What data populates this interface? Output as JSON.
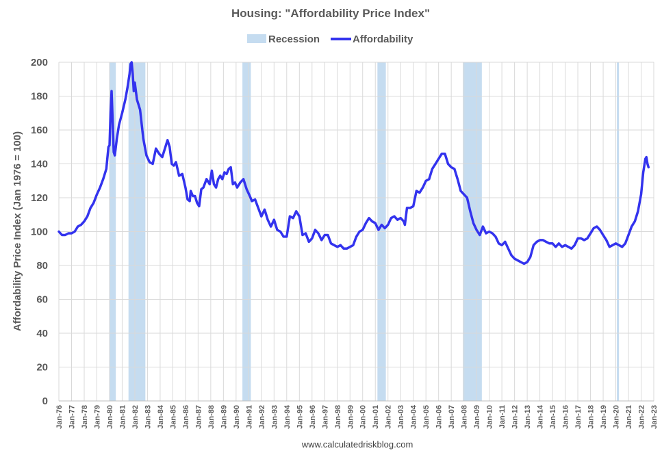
{
  "chart_data": {
    "type": "line",
    "title": "Housing: \"Affordability Price Index\"",
    "ylabel": "Affordability Price Index (Jan 1976 = 100)",
    "xlabel": "",
    "ylim": [
      0,
      200
    ],
    "xlim": [
      "1976-01",
      "2023-01"
    ],
    "yticks": [
      0,
      20,
      40,
      60,
      80,
      100,
      120,
      140,
      160,
      180,
      200
    ],
    "xtick_labels": [
      "Jan-76",
      "Jan-77",
      "Jan-78",
      "Jan-79",
      "Jan-80",
      "Jan-81",
      "Jan-82",
      "Jan-83",
      "Jan-84",
      "Jan-85",
      "Jan-86",
      "Jan-87",
      "Jan-88",
      "Jan-89",
      "Jan-90",
      "Jan-91",
      "Jan-92",
      "Jan-93",
      "Jan-94",
      "Jan-95",
      "Jan-96",
      "Jan-97",
      "Jan-98",
      "Jan-99",
      "Jan-00",
      "Jan-01",
      "Jan-02",
      "Jan-03",
      "Jan-04",
      "Jan-05",
      "Jan-06",
      "Jan-07",
      "Jan-08",
      "Jan-09",
      "Jan-10",
      "Jan-11",
      "Jan-12",
      "Jan-13",
      "Jan-14",
      "Jan-15",
      "Jan-16",
      "Jan-17",
      "Jan-18",
      "Jan-19",
      "Jan-20",
      "Jan-21",
      "Jan-22",
      "Jan-23"
    ],
    "grid": true,
    "legend_position": "top-center",
    "legend": [
      {
        "name": "Recession",
        "type": "band",
        "color": "#c5dcf0"
      },
      {
        "name": "Affordability",
        "type": "line",
        "color": "#3333ee"
      }
    ],
    "recessions": [
      [
        "1980-01",
        "1980-07"
      ],
      [
        "1981-07",
        "1982-11"
      ],
      [
        "1990-07",
        "1991-03"
      ],
      [
        "2001-03",
        "2001-11"
      ],
      [
        "2007-12",
        "2009-06"
      ],
      [
        "2020-02",
        "2020-04"
      ]
    ],
    "series": [
      {
        "name": "Affordability",
        "color": "#3333ee",
        "points": [
          [
            "1976-01",
            100
          ],
          [
            "1976-04",
            98
          ],
          [
            "1976-07",
            98
          ],
          [
            "1976-10",
            99
          ],
          [
            "1977-01",
            99
          ],
          [
            "1977-04",
            100
          ],
          [
            "1977-07",
            103
          ],
          [
            "1977-10",
            104
          ],
          [
            "1978-01",
            106
          ],
          [
            "1978-04",
            109
          ],
          [
            "1978-07",
            114
          ],
          [
            "1978-10",
            117
          ],
          [
            "1979-01",
            122
          ],
          [
            "1979-04",
            126
          ],
          [
            "1979-07",
            131
          ],
          [
            "1979-10",
            137
          ],
          [
            "1979-12",
            150
          ],
          [
            "1980-01",
            151
          ],
          [
            "1980-02",
            170
          ],
          [
            "1980-03",
            183
          ],
          [
            "1980-04",
            165
          ],
          [
            "1980-05",
            147
          ],
          [
            "1980-06",
            145
          ],
          [
            "1980-08",
            155
          ],
          [
            "1980-10",
            163
          ],
          [
            "1981-01",
            170
          ],
          [
            "1981-04",
            178
          ],
          [
            "1981-06",
            185
          ],
          [
            "1981-08",
            193
          ],
          [
            "1981-09",
            199
          ],
          [
            "1981-10",
            200
          ],
          [
            "1981-11",
            193
          ],
          [
            "1981-12",
            183
          ],
          [
            "1982-01",
            188
          ],
          [
            "1982-03",
            178
          ],
          [
            "1982-06",
            172
          ],
          [
            "1982-09",
            155
          ],
          [
            "1982-12",
            145
          ],
          [
            "1983-03",
            141
          ],
          [
            "1983-06",
            140
          ],
          [
            "1983-09",
            149
          ],
          [
            "1983-12",
            146
          ],
          [
            "1984-03",
            144
          ],
          [
            "1984-06",
            150
          ],
          [
            "1984-08",
            154
          ],
          [
            "1984-10",
            150
          ],
          [
            "1984-12",
            140
          ],
          [
            "1985-02",
            139
          ],
          [
            "1985-04",
            141
          ],
          [
            "1985-07",
            133
          ],
          [
            "1985-10",
            134
          ],
          [
            "1986-01",
            126
          ],
          [
            "1986-03",
            119
          ],
          [
            "1986-05",
            118
          ],
          [
            "1986-06",
            124
          ],
          [
            "1986-08",
            121
          ],
          [
            "1986-10",
            121
          ],
          [
            "1986-12",
            117
          ],
          [
            "1987-02",
            115
          ],
          [
            "1987-04",
            125
          ],
          [
            "1987-06",
            126
          ],
          [
            "1987-09",
            131
          ],
          [
            "1987-12",
            128
          ],
          [
            "1988-02",
            136
          ],
          [
            "1988-04",
            128
          ],
          [
            "1988-06",
            126
          ],
          [
            "1988-08",
            131
          ],
          [
            "1988-10",
            133
          ],
          [
            "1988-12",
            131
          ],
          [
            "1989-02",
            135
          ],
          [
            "1989-04",
            134
          ],
          [
            "1989-06",
            137
          ],
          [
            "1989-08",
            138
          ],
          [
            "1989-10",
            128
          ],
          [
            "1989-12",
            129
          ],
          [
            "1990-02",
            126
          ],
          [
            "1990-05",
            129
          ],
          [
            "1990-08",
            131
          ],
          [
            "1990-11",
            125
          ],
          [
            "1991-02",
            121
          ],
          [
            "1991-04",
            118
          ],
          [
            "1991-07",
            119
          ],
          [
            "1991-10",
            114
          ],
          [
            "1992-01",
            109
          ],
          [
            "1992-04",
            113
          ],
          [
            "1992-07",
            107
          ],
          [
            "1992-10",
            103
          ],
          [
            "1993-01",
            107
          ],
          [
            "1993-04",
            101
          ],
          [
            "1993-07",
            100
          ],
          [
            "1993-10",
            97
          ],
          [
            "1994-01",
            97
          ],
          [
            "1994-04",
            109
          ],
          [
            "1994-07",
            108
          ],
          [
            "1994-10",
            112
          ],
          [
            "1995-01",
            109
          ],
          [
            "1995-04",
            98
          ],
          [
            "1995-07",
            99
          ],
          [
            "1995-10",
            94
          ],
          [
            "1996-01",
            96
          ],
          [
            "1996-04",
            101
          ],
          [
            "1996-07",
            99
          ],
          [
            "1996-10",
            95
          ],
          [
            "1997-01",
            98
          ],
          [
            "1997-04",
            98
          ],
          [
            "1997-07",
            93
          ],
          [
            "1997-10",
            92
          ],
          [
            "1998-01",
            91
          ],
          [
            "1998-04",
            92
          ],
          [
            "1998-07",
            90
          ],
          [
            "1998-10",
            90
          ],
          [
            "1999-01",
            91
          ],
          [
            "1999-04",
            92
          ],
          [
            "1999-07",
            97
          ],
          [
            "1999-10",
            100
          ],
          [
            "2000-01",
            101
          ],
          [
            "2000-04",
            105
          ],
          [
            "2000-07",
            108
          ],
          [
            "2000-10",
            106
          ],
          [
            "2001-01",
            105
          ],
          [
            "2001-04",
            101
          ],
          [
            "2001-07",
            104
          ],
          [
            "2001-10",
            102
          ],
          [
            "2002-01",
            104
          ],
          [
            "2002-04",
            108
          ],
          [
            "2002-07",
            109
          ],
          [
            "2002-10",
            107
          ],
          [
            "2003-01",
            108
          ],
          [
            "2003-04",
            106
          ],
          [
            "2003-05",
            104
          ],
          [
            "2003-07",
            114
          ],
          [
            "2003-10",
            114
          ],
          [
            "2004-01",
            115
          ],
          [
            "2004-04",
            124
          ],
          [
            "2004-07",
            123
          ],
          [
            "2004-10",
            126
          ],
          [
            "2005-01",
            130
          ],
          [
            "2005-04",
            131
          ],
          [
            "2005-07",
            137
          ],
          [
            "2005-10",
            140
          ],
          [
            "2006-01",
            143
          ],
          [
            "2006-04",
            146
          ],
          [
            "2006-07",
            146
          ],
          [
            "2006-10",
            140
          ],
          [
            "2007-01",
            138
          ],
          [
            "2007-04",
            137
          ],
          [
            "2007-07",
            131
          ],
          [
            "2007-10",
            124
          ],
          [
            "2008-01",
            122
          ],
          [
            "2008-04",
            120
          ],
          [
            "2008-07",
            112
          ],
          [
            "2008-10",
            105
          ],
          [
            "2009-01",
            101
          ],
          [
            "2009-04",
            98
          ],
          [
            "2009-07",
            103
          ],
          [
            "2009-10",
            99
          ],
          [
            "2010-01",
            100
          ],
          [
            "2010-04",
            99
          ],
          [
            "2010-07",
            97
          ],
          [
            "2010-10",
            93
          ],
          [
            "2011-01",
            92
          ],
          [
            "2011-04",
            94
          ],
          [
            "2011-07",
            90
          ],
          [
            "2011-10",
            86
          ],
          [
            "2012-01",
            84
          ],
          [
            "2012-04",
            83
          ],
          [
            "2012-07",
            82
          ],
          [
            "2012-10",
            81
          ],
          [
            "2013-01",
            82
          ],
          [
            "2013-04",
            85
          ],
          [
            "2013-07",
            92
          ],
          [
            "2013-10",
            94
          ],
          [
            "2014-01",
            95
          ],
          [
            "2014-04",
            95
          ],
          [
            "2014-07",
            94
          ],
          [
            "2014-10",
            93
          ],
          [
            "2015-01",
            93
          ],
          [
            "2015-04",
            91
          ],
          [
            "2015-07",
            93
          ],
          [
            "2015-10",
            91
          ],
          [
            "2016-01",
            92
          ],
          [
            "2016-04",
            91
          ],
          [
            "2016-07",
            90
          ],
          [
            "2016-10",
            92
          ],
          [
            "2017-01",
            96
          ],
          [
            "2017-04",
            96
          ],
          [
            "2017-07",
            95
          ],
          [
            "2017-10",
            96
          ],
          [
            "2018-01",
            99
          ],
          [
            "2018-04",
            102
          ],
          [
            "2018-07",
            103
          ],
          [
            "2018-10",
            101
          ],
          [
            "2019-01",
            98
          ],
          [
            "2019-04",
            95
          ],
          [
            "2019-07",
            91
          ],
          [
            "2019-10",
            92
          ],
          [
            "2020-01",
            93
          ],
          [
            "2020-04",
            92
          ],
          [
            "2020-07",
            91
          ],
          [
            "2020-10",
            93
          ],
          [
            "2021-01",
            98
          ],
          [
            "2021-04",
            103
          ],
          [
            "2021-07",
            106
          ],
          [
            "2021-10",
            112
          ],
          [
            "2022-01",
            122
          ],
          [
            "2022-03",
            135
          ],
          [
            "2022-05",
            143
          ],
          [
            "2022-06",
            144
          ],
          [
            "2022-07",
            140
          ],
          [
            "2022-08",
            138
          ]
        ]
      }
    ]
  },
  "source_text": "www.calculatedriskblog.com"
}
